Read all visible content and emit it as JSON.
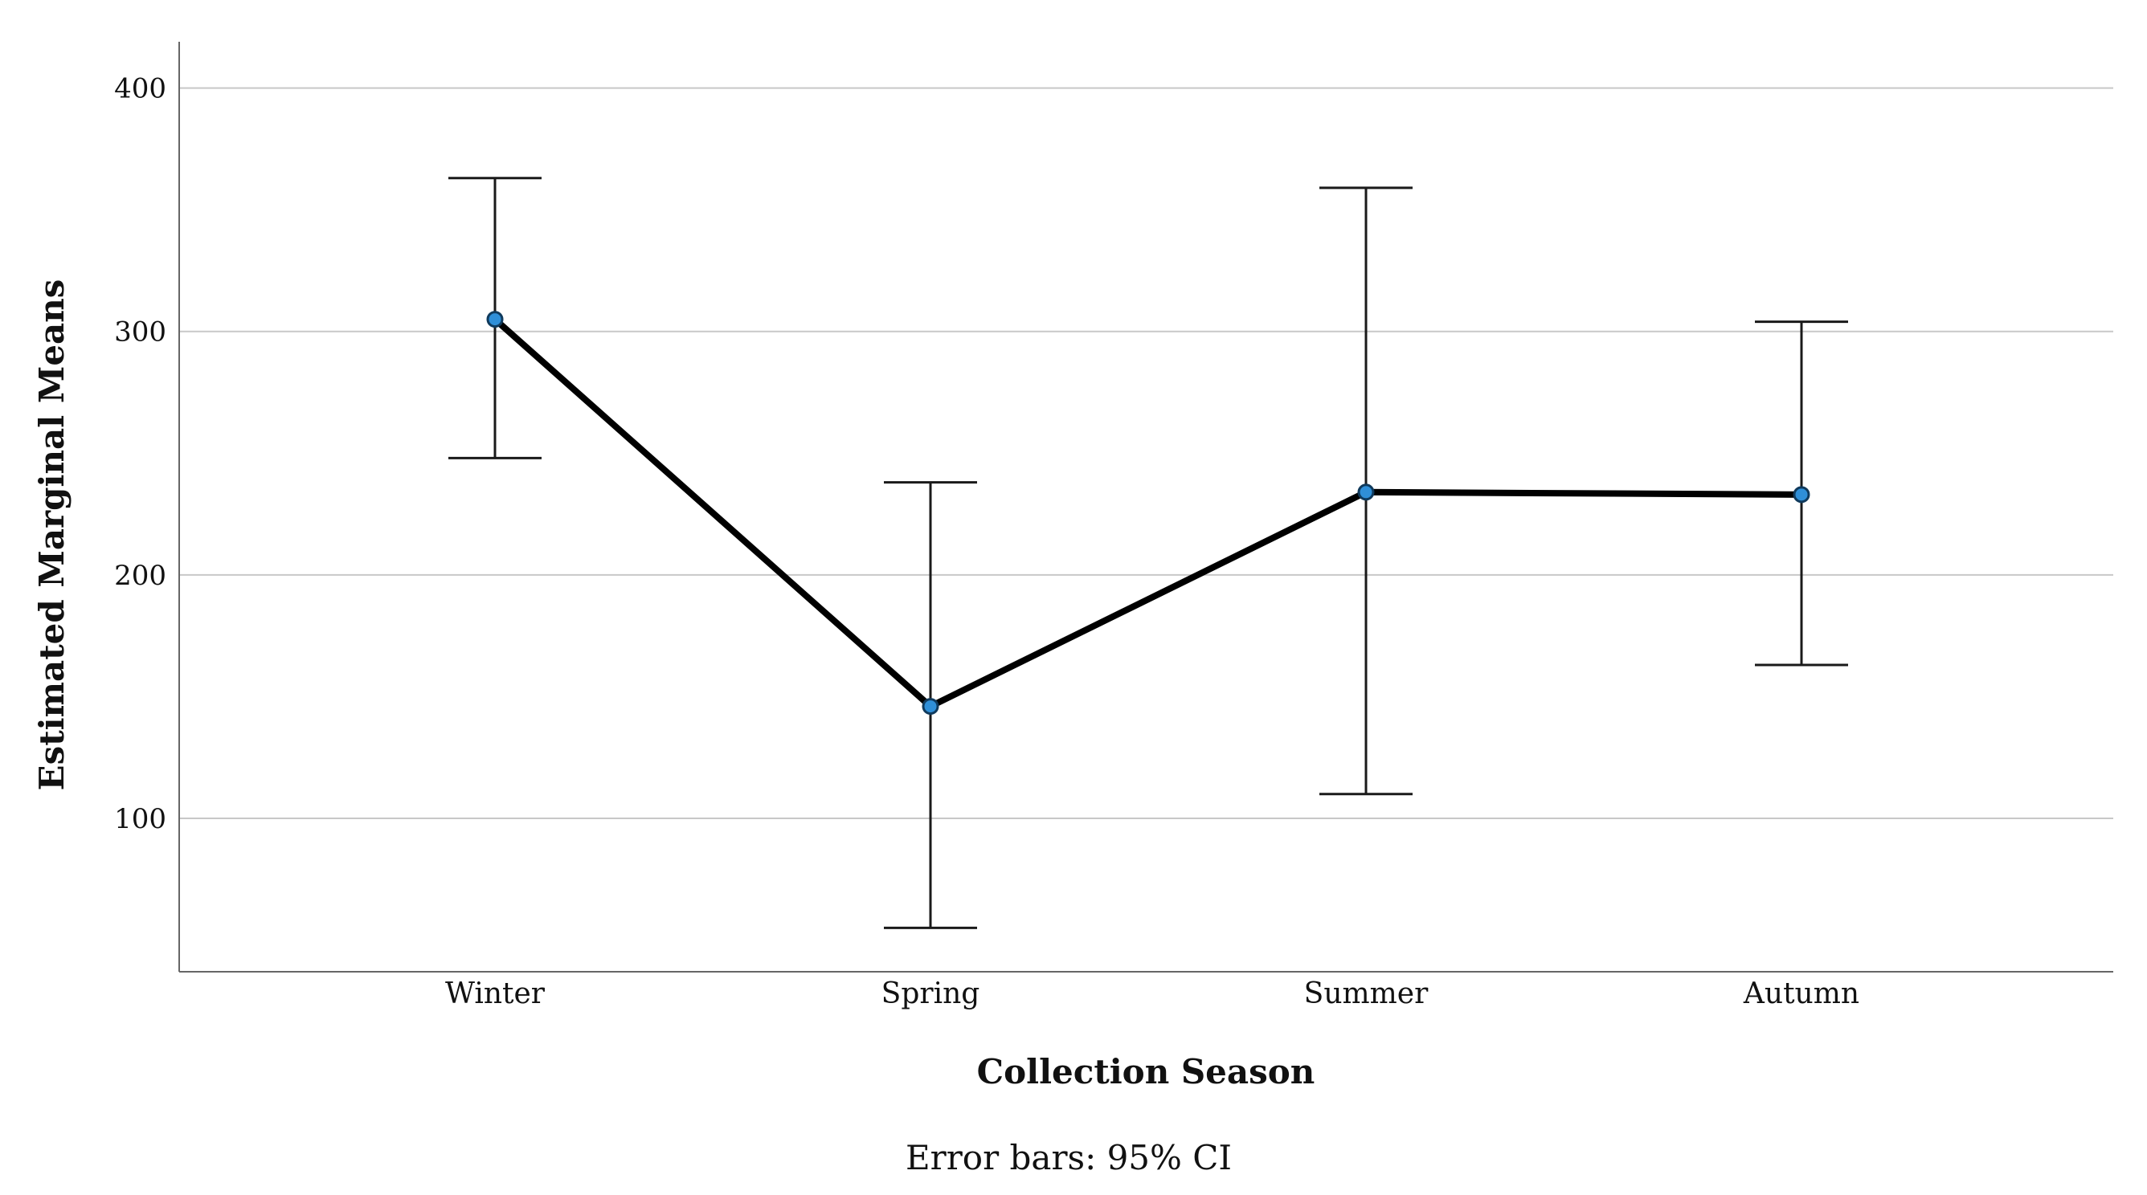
{
  "chart_data": {
    "type": "line",
    "title": "",
    "xlabel": "Collection Season",
    "ylabel": "Estimated Marginal Means",
    "categories": [
      "Winter",
      "Spring",
      "Summer",
      "Autumn"
    ],
    "series": [
      {
        "values": [
          305,
          146,
          234,
          233
        ],
        "ci_lower": [
          248,
          55,
          110,
          163
        ],
        "ci_upper": [
          363,
          238,
          359,
          304
        ]
      }
    ],
    "yticks": [
      100,
      200,
      300,
      400
    ],
    "ylim": [
      37,
      419
    ],
    "grid": true,
    "footnote": "Error bars: 95% CI",
    "colors": {
      "line": "#000000",
      "marker": "#2f8fd8",
      "marker_stroke": "#103a5c",
      "grid": "#c8c8c8",
      "axis": "#666666"
    }
  }
}
